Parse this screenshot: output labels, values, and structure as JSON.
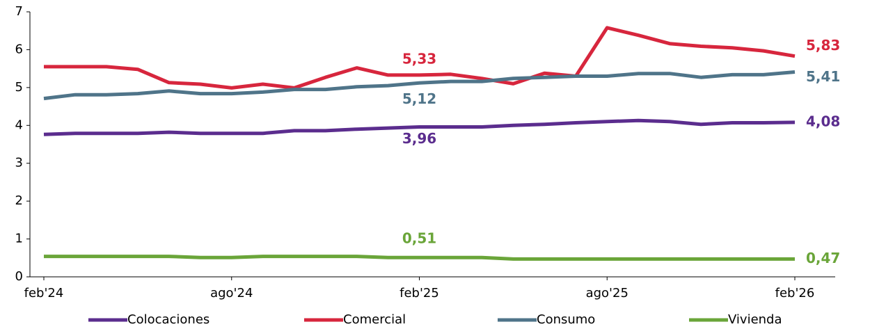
{
  "chart_data": {
    "type": "line",
    "categories": [
      "feb'24",
      null,
      null,
      null,
      null,
      null,
      "ago'24",
      null,
      null,
      null,
      null,
      null,
      "feb'25",
      null,
      null,
      null,
      null,
      null,
      "ago'25",
      null,
      null,
      null,
      null,
      null,
      "feb'26"
    ],
    "ylim": [
      0,
      7
    ],
    "yticks": [
      0,
      1,
      2,
      3,
      4,
      5,
      6,
      7
    ],
    "series": [
      {
        "name": "Colocaciones",
        "color": "#5b2d8e",
        "values": [
          3.76,
          3.79,
          3.79,
          3.79,
          3.82,
          3.79,
          3.79,
          3.79,
          3.86,
          3.86,
          3.9,
          3.93,
          3.96,
          3.96,
          3.96,
          4.0,
          4.03,
          4.07,
          4.1,
          4.13,
          4.1,
          4.03,
          4.07,
          4.07,
          4.08
        ],
        "value_labels": [
          null,
          null,
          null,
          null,
          null,
          null,
          null,
          null,
          null,
          null,
          null,
          null,
          "3,96",
          null,
          null,
          null,
          null,
          null,
          null,
          null,
          null,
          null,
          null,
          null,
          "4,08"
        ]
      },
      {
        "name": "Comercial",
        "color": "#d7263d",
        "values": [
          5.55,
          5.55,
          5.55,
          5.48,
          5.13,
          5.09,
          4.99,
          5.09,
          4.99,
          5.27,
          5.52,
          5.33,
          5.33,
          5.35,
          5.24,
          5.1,
          5.38,
          5.3,
          6.58,
          6.38,
          6.16,
          6.09,
          6.05,
          5.97,
          5.83
        ],
        "value_labels": [
          null,
          null,
          null,
          null,
          null,
          null,
          null,
          null,
          null,
          null,
          null,
          null,
          "5,33",
          null,
          null,
          null,
          null,
          null,
          null,
          null,
          null,
          null,
          null,
          null,
          "5,83"
        ]
      },
      {
        "name": "Consumo",
        "color": "#4f7489",
        "values": [
          4.71,
          4.81,
          4.81,
          4.84,
          4.91,
          4.84,
          4.84,
          4.88,
          4.95,
          4.95,
          5.02,
          5.05,
          5.12,
          5.16,
          5.16,
          5.24,
          5.27,
          5.3,
          5.3,
          5.37,
          5.37,
          5.27,
          5.34,
          5.34,
          5.41
        ],
        "value_labels": [
          null,
          null,
          null,
          null,
          null,
          null,
          null,
          null,
          null,
          null,
          null,
          null,
          "5,12",
          null,
          null,
          null,
          null,
          null,
          null,
          null,
          null,
          null,
          null,
          null,
          "5,41"
        ]
      },
      {
        "name": "Vivienda",
        "color": "#6aa539",
        "values": [
          0.54,
          0.54,
          0.54,
          0.54,
          0.54,
          0.51,
          0.51,
          0.54,
          0.54,
          0.54,
          0.54,
          0.51,
          0.51,
          0.51,
          0.51,
          0.47,
          0.47,
          0.47,
          0.47,
          0.47,
          0.47,
          0.47,
          0.47,
          0.47,
          0.47
        ],
        "value_labels": [
          null,
          null,
          null,
          null,
          null,
          null,
          null,
          null,
          null,
          null,
          null,
          null,
          "0,51",
          null,
          null,
          null,
          null,
          null,
          null,
          null,
          null,
          null,
          null,
          null,
          "0,47"
        ]
      }
    ]
  }
}
